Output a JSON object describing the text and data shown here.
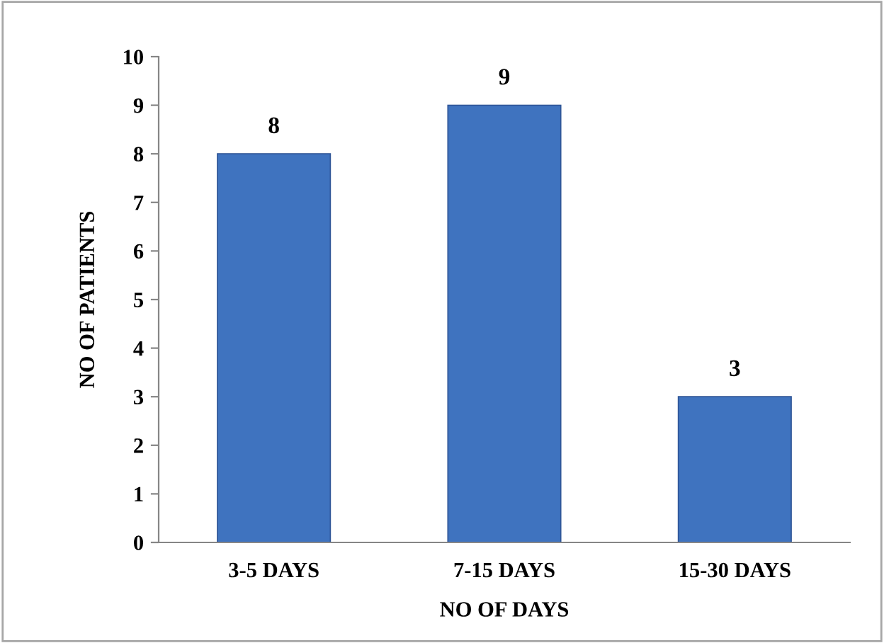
{
  "chart_data": {
    "type": "bar",
    "xlabel": "NO OF DAYS",
    "ylabel": "NO OF PATIENTS",
    "categories": [
      "3-5 DAYS",
      "7-15 DAYS",
      "15-30 DAYS"
    ],
    "values": [
      8,
      9,
      3
    ],
    "color": "#3f73bf",
    "ylim": [
      0,
      10
    ],
    "yticks": [
      0,
      1,
      2,
      3,
      4,
      5,
      6,
      7,
      8,
      9,
      10
    ],
    "grid": false,
    "data_labels": true
  }
}
